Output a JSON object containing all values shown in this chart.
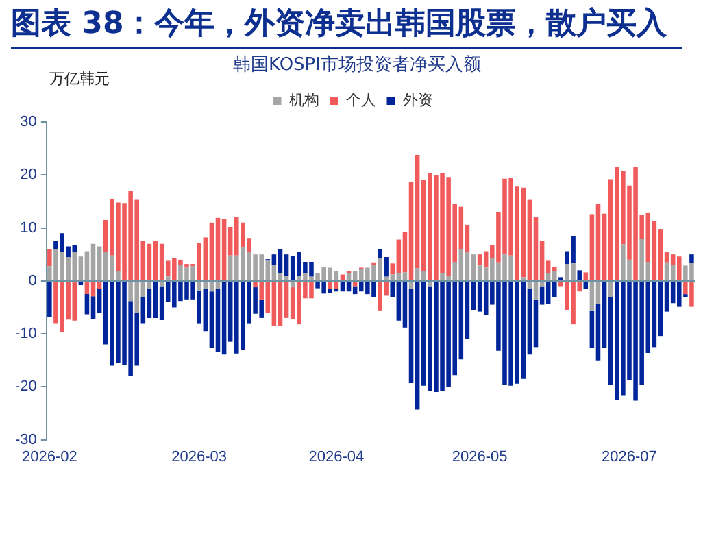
{
  "chart_data": {
    "type": "bar",
    "title": "图表 38：今年，外资净卖出韩国股票，散户买入",
    "subtitle": "韩国KOSPI市场投资者净买入额",
    "ylabel": "万亿韩元",
    "categories": [
      "2026-02",
      null,
      null,
      null,
      null,
      null,
      null,
      null,
      null,
      null,
      null,
      null,
      null,
      null,
      null,
      null,
      null,
      null,
      null,
      null,
      null,
      null,
      null,
      null,
      "2026-03",
      null,
      null,
      null,
      null,
      null,
      null,
      null,
      null,
      null,
      null,
      null,
      null,
      null,
      null,
      null,
      null,
      null,
      null,
      null,
      null,
      null,
      "2026-04",
      null,
      null,
      null,
      null,
      null,
      null,
      null,
      null,
      null,
      null,
      null,
      null,
      null,
      null,
      null,
      null,
      null,
      null,
      null,
      null,
      null,
      null,
      "2026-05",
      null,
      null,
      null,
      null,
      null,
      null,
      null,
      null,
      null,
      null,
      null,
      null,
      null,
      null,
      null,
      null,
      null,
      null,
      null,
      null,
      null,
      null,
      null,
      "2026-07",
      null,
      null,
      null,
      null,
      null,
      null,
      null,
      null,
      null,
      null
    ],
    "stacked": true,
    "legend": "top",
    "grid": false,
    "ref_lines": [
      {
        "axis": "y",
        "value": 0,
        "color": "#6f93a3"
      }
    ],
    "ylim": [
      -30,
      30
    ],
    "yticks": [
      -30,
      -20,
      -10,
      0,
      10,
      20,
      30
    ],
    "series": [
      {
        "name": "机构",
        "color": "#a5a5a5",
        "values": [
          2.8,
          6,
          5.5,
          4.5,
          5.5,
          4.6,
          5.6,
          7,
          6.5,
          5.5,
          4.8,
          1.8,
          0,
          -3.8,
          -6,
          -3,
          -1.5,
          null,
          -1,
          0.8,
          null,
          3,
          2.5,
          2.8,
          -1.8,
          -1.5,
          -2,
          -1.5,
          0,
          4.8,
          4.8,
          6.3,
          5.5,
          5,
          5,
          3.8,
          3,
          1.5,
          1,
          -1.2,
          1,
          1.5,
          0.8,
          1.5,
          2.7,
          2.5,
          1.8,
          0,
          1.5,
          1.8,
          2.2,
          2.5,
          3,
          4.2,
          0.8,
          1.2,
          1.5,
          1.6,
          -1.5,
          2.4,
          1.8,
          -1,
          0,
          1.5,
          1,
          3.6,
          6,
          5.4,
          5,
          2.9,
          2.5,
          4.3,
          3.5,
          5,
          4.8,
          null,
          0.7,
          -1.4,
          -3.5,
          -1,
          1.5,
          1.8,
          0,
          3.2,
          3.3,
          null,
          0,
          -5.7,
          -4.3,
          0,
          -3,
          0,
          6.9,
          4,
          0,
          8,
          3.6,
          null,
          0,
          3.5,
          3,
          0,
          2.9,
          3.4
        ]
      },
      {
        "name": "个人",
        "color": "#f05a5a",
        "values": [
          3.2,
          -8,
          -9.6,
          -7.3,
          -7.5,
          0,
          -2.5,
          -2.9,
          -1.5,
          6,
          10.7,
          13,
          14.7,
          17,
          15.3,
          7.6,
          7,
          7.5,
          7,
          3,
          4.3,
          1,
          0.7,
          0.4,
          7.2,
          8.2,
          11,
          11.9,
          11.7,
          5.4,
          7.2,
          4.7,
          2.6,
          -1.2,
          -3.5,
          -6,
          -8.5,
          -8.5,
          -7,
          -6,
          -8.2,
          -3.3,
          -3.3,
          0,
          0,
          -1.5,
          -1.5,
          1.2,
          0.4,
          -1,
          0.3,
          0,
          0.5,
          -5.7,
          -2.8,
          2.1,
          6.3,
          7.6,
          18.6,
          21.4,
          17.2,
          20.3,
          20,
          18.8,
          18.6,
          11,
          8,
          5.2,
          0,
          2.1,
          3.1,
          2.5,
          9.5,
          14.3,
          14.6,
          17.8,
          16.9,
          15.3,
          12.1,
          7.6,
          2.3,
          0.9,
          -1,
          -5.5,
          -8.2,
          -2,
          1.6,
          12.6,
          14.6,
          12.7,
          19.2,
          21.6,
          13.9,
          14,
          21.6,
          4.5,
          9.2,
          11.3,
          9.8,
          1.9,
          2,
          4.6,
          -2.5,
          -4.9
        ]
      },
      {
        "name": "外资",
        "color": "#00259a",
        "values": [
          -6.9,
          1.5,
          3.5,
          2,
          1.3,
          -0.8,
          -3.8,
          -4.3,
          -4.5,
          -12,
          -16,
          -15.5,
          -15.8,
          -14.2,
          -10,
          -5,
          -5.5,
          -7,
          -6.4,
          -4,
          -5,
          -3.8,
          -3.5,
          -3.5,
          -6.2,
          -8,
          -10.6,
          -12,
          -13.9,
          -11.5,
          -13.7,
          -13,
          -8,
          -5,
          -3.5,
          0.3,
          2,
          4.5,
          4,
          4.7,
          4.5,
          2.1,
          2.8,
          -1.4,
          -2.4,
          -0.8,
          -0.5,
          -2,
          -2,
          -1.5,
          -2,
          -2.5,
          -3,
          1.8,
          3.7,
          -3,
          -7.5,
          -8.8,
          -17.8,
          -24.3,
          -19.8,
          -19.8,
          -21,
          -20.8,
          -20,
          -17.8,
          -14.8,
          -11,
          -5.5,
          -5.8,
          -6.5,
          -4.5,
          -13.2,
          -19.6,
          -19.8,
          -19.4,
          -18.5,
          -12.5,
          -9,
          -3.5,
          -4.3,
          -3,
          0.7,
          2.4,
          5.1,
          2,
          -1.5,
          -7,
          -10.7,
          -12.7,
          -16.6,
          -22.4,
          -21.7,
          -18.7,
          -22.6,
          -19.6,
          -13.6,
          -12.5,
          -10.4,
          -5.8,
          -4.2,
          -4.9,
          -0.5,
          1.6
        ]
      }
    ]
  }
}
